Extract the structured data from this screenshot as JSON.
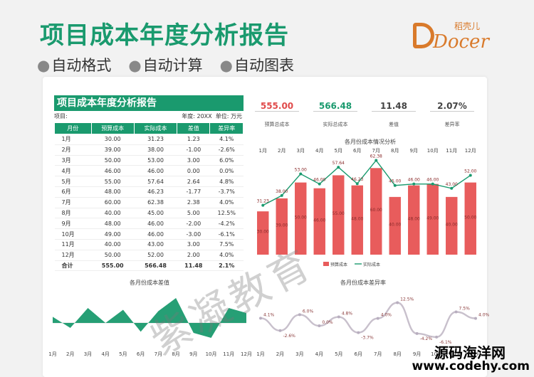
{
  "banner": {
    "title": "项目成本年度分析报告",
    "features": [
      "自动格式",
      "自动计算",
      "自动图表"
    ]
  },
  "logo": {
    "text": "Docer",
    "cn": "稻壳儿"
  },
  "sheet": {
    "title": "项目成本年度分析报告",
    "project_label": "项目:",
    "year_label": "年度: 20XX",
    "unit_label": "单位: 万元",
    "headers": [
      "月份",
      "预算成本",
      "实际成本",
      "差值",
      "差异率"
    ],
    "rows": [
      [
        "1月",
        "30.00",
        "31.23",
        "1.23",
        "4.1%"
      ],
      [
        "2月",
        "39.00",
        "38.00",
        "-1.00",
        "-2.6%"
      ],
      [
        "3月",
        "50.00",
        "53.00",
        "3.00",
        "6.0%"
      ],
      [
        "4月",
        "46.00",
        "46.00",
        "0.00",
        "0.0%"
      ],
      [
        "5月",
        "55.00",
        "57.64",
        "2.64",
        "4.8%"
      ],
      [
        "6月",
        "48.00",
        "46.23",
        "-1.77",
        "-3.7%"
      ],
      [
        "7月",
        "60.00",
        "62.38",
        "2.38",
        "4.0%"
      ],
      [
        "8月",
        "40.00",
        "45.00",
        "5.00",
        "12.5%"
      ],
      [
        "9月",
        "48.00",
        "46.00",
        "-2.00",
        "-4.2%"
      ],
      [
        "10月",
        "49.00",
        "46.00",
        "-3.00",
        "-6.1%"
      ],
      [
        "11月",
        "40.00",
        "43.00",
        "3.00",
        "7.5%"
      ],
      [
        "12月",
        "50.00",
        "52.00",
        "2.00",
        "4.0%"
      ]
    ],
    "total": [
      "合计",
      "555.00",
      "566.48",
      "11.48",
      "2.1%"
    ]
  },
  "kpis": [
    {
      "value": "555.00",
      "label": "预算总成本",
      "color": "#e04b4b"
    },
    {
      "value": "566.48",
      "label": "实际总成本",
      "color": "#1a9a6e"
    },
    {
      "value": "11.48",
      "label": "差值",
      "color": "#444444"
    },
    {
      "value": "2.07%",
      "label": "差异率",
      "color": "#444444"
    }
  ],
  "watermark": "紫凝教育",
  "footer": {
    "site_cn": "源码海洋网",
    "site_url": "www.codehy.com"
  },
  "chart_data": [
    {
      "type": "bar",
      "title": "各月份成本情况分析",
      "categories": [
        "1月",
        "2月",
        "3月",
        "4月",
        "5月",
        "6月",
        "7月",
        "8月",
        "9月",
        "10月",
        "11月",
        "12月"
      ],
      "series": [
        {
          "name": "预算成本",
          "values": [
            30,
            39,
            50,
            46,
            55,
            48,
            60,
            40,
            48,
            49,
            40,
            50
          ],
          "color": "#e85c5c"
        },
        {
          "name": "实际成本",
          "values": [
            31.23,
            38,
            53,
            46,
            57.64,
            46.23,
            62.38,
            45,
            46,
            46,
            43,
            52
          ],
          "color": "#1a9a6e"
        }
      ],
      "legend": "bottom"
    },
    {
      "type": "area",
      "title": "各月份成本差值",
      "categories": [
        "1月",
        "2月",
        "3月",
        "4月",
        "5月",
        "6月",
        "7月",
        "8月",
        "9月",
        "10月",
        "11月",
        "12月"
      ],
      "values": [
        1.23,
        -1,
        3,
        0,
        2.64,
        -1.77,
        2.38,
        5,
        -2,
        -3,
        3,
        2
      ],
      "color": "#1a9a6e"
    },
    {
      "type": "line",
      "title": "各月份成本差异率",
      "categories": [
        "1月",
        "2月",
        "3月",
        "4月",
        "5月",
        "6月",
        "7月",
        "8月",
        "9月",
        "10月",
        "11月",
        "12月"
      ],
      "values": [
        4.1,
        -2.6,
        6.0,
        0.0,
        4.8,
        -3.7,
        4.0,
        12.5,
        -4.2,
        -6.1,
        7.5,
        4.0
      ],
      "labels": [
        "4.1%",
        "-2.6%",
        "6.0%",
        "0.0%",
        "4.8%",
        "-3.7%",
        "4.0%",
        "12.5%",
        "-4.2%",
        "-6.1%",
        "7.5%",
        "4.0%"
      ],
      "color": "#c8c0cc"
    }
  ]
}
